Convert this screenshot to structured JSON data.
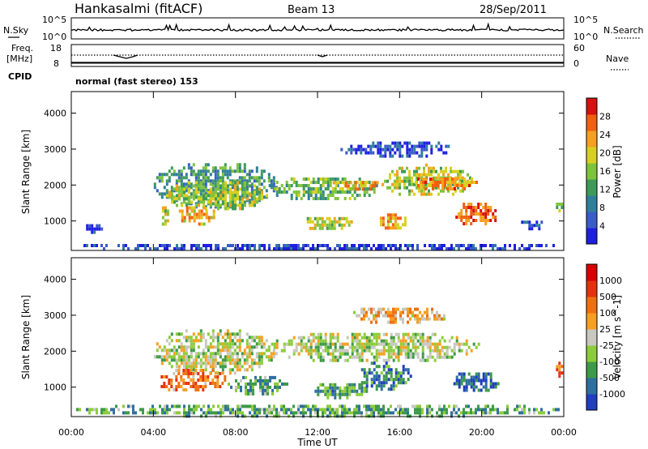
{
  "header": {
    "site_title": "Hankasalmi (fitACF)",
    "beam": "Beam 13",
    "date": "28/Sep/2011"
  },
  "status_panels": {
    "nsky_label": "N.Sky",
    "nsearch_label": "N.Search",
    "noise_ticks": [
      "10^5",
      "10^0"
    ],
    "freq_label_line1": "Freq.",
    "freq_label_line2": "[MHz]",
    "freq_ticks": [
      "18",
      "8"
    ],
    "nave_label": "Nave",
    "nave_ticks": [
      "60",
      "0"
    ],
    "cpid_label": "CPID",
    "cpid_text": "normal (fast stereo) 153"
  },
  "chart_data": [
    {
      "type": "heatmap",
      "parameter": "Power",
      "x_ticks": [
        "00:00",
        "04:00",
        "08:00",
        "12:00",
        "16:00",
        "20:00",
        "00:00"
      ],
      "xlim_hours": [
        0,
        24
      ],
      "ylabel": "Slant Range [km]",
      "y_ticks": [
        1000,
        2000,
        3000,
        4000
      ],
      "ylim": [
        180,
        4600
      ],
      "colorbar": {
        "label": "Power [dB]",
        "ticks": [
          "4",
          "8",
          "12",
          "16",
          "20",
          "24",
          "28"
        ],
        "range": [
          0,
          30
        ],
        "colors": [
          "#1f1fe0",
          "#3a5cc8",
          "#2f7f9a",
          "#3f9a5a",
          "#7ec43a",
          "#d8d020",
          "#f5a020",
          "#f06010",
          "#d81010"
        ]
      },
      "regions": [
        {
          "t": [
            3.9,
            10.0
          ],
          "r": [
            1400,
            2700
          ],
          "level": 0.35
        },
        {
          "t": [
            4.5,
            9.5
          ],
          "r": [
            1300,
            2200
          ],
          "level": 0.55
        },
        {
          "t": [
            9.5,
            15.0
          ],
          "r": [
            1600,
            2300
          ],
          "level": 0.45
        },
        {
          "t": [
            12.5,
            15.2
          ],
          "r": [
            1900,
            2200
          ],
          "level": 0.7
        },
        {
          "t": [
            15.0,
            19.5
          ],
          "r": [
            1700,
            2600
          ],
          "level": 0.55
        },
        {
          "t": [
            16.5,
            19.8
          ],
          "r": [
            1900,
            2300
          ],
          "level": 0.75
        },
        {
          "t": [
            5.0,
            7.0
          ],
          "r": [
            900,
            1500
          ],
          "level": 0.7
        },
        {
          "t": [
            4.3,
            4.7
          ],
          "r": [
            900,
            1500
          ],
          "level": 0.6
        },
        {
          "t": [
            11.0,
            13.8
          ],
          "r": [
            800,
            1200
          ],
          "level": 0.55
        },
        {
          "t": [
            14.8,
            16.3
          ],
          "r": [
            800,
            1300
          ],
          "level": 0.7
        },
        {
          "t": [
            18.6,
            20.8
          ],
          "r": [
            900,
            1600
          ],
          "level": 0.85
        },
        {
          "t": [
            23.5,
            23.9
          ],
          "r": [
            1300,
            1600
          ],
          "level": 0.5
        },
        {
          "t": [
            21.8,
            23.0
          ],
          "r": [
            800,
            1100
          ],
          "level": 0.15
        },
        {
          "t": [
            13.0,
            18.5
          ],
          "r": [
            2800,
            3300
          ],
          "level": 0.12
        },
        {
          "t": [
            0.6,
            1.6
          ],
          "r": [
            700,
            1000
          ],
          "level": 0.1
        },
        {
          "t": [
            0.0,
            24.0
          ],
          "r": [
            200,
            450
          ],
          "level": 0.12
        }
      ]
    },
    {
      "type": "heatmap",
      "parameter": "Velocity",
      "x_ticks": [
        "00:00",
        "04:00",
        "08:00",
        "12:00",
        "16:00",
        "20:00",
        "00:00"
      ],
      "xlim_hours": [
        0,
        24
      ],
      "xlabel": "Time UT",
      "ylabel": "Slant Range [km]",
      "y_ticks": [
        1000,
        2000,
        3000,
        4000
      ],
      "ylim": [
        180,
        4600
      ],
      "colorbar": {
        "label": "Velocity [m s^-1]",
        "ticks": [
          "1000",
          "500",
          "100",
          "25",
          "-25",
          "-100",
          "-500",
          "-1000"
        ],
        "colors": [
          "#1f3ec0",
          "#2f6fa0",
          "#3d9a48",
          "#8ccc3a",
          "#c8c8c0",
          "#f5a020",
          "#f07010",
          "#e83010",
          "#d80000"
        ]
      },
      "regions": [
        {
          "t": [
            3.9,
            10.0
          ],
          "r": [
            1400,
            2700
          ],
          "level": 0.45
        },
        {
          "t": [
            9.5,
            20.0
          ],
          "r": [
            1700,
            2600
          ],
          "level": 0.45
        },
        {
          "t": [
            4.0,
            7.5
          ],
          "r": [
            900,
            1600
          ],
          "level": 0.7
        },
        {
          "t": [
            7.5,
            10.5
          ],
          "r": [
            800,
            1400
          ],
          "level": 0.3
        },
        {
          "t": [
            11.5,
            14.5
          ],
          "r": [
            700,
            1200
          ],
          "level": 0.25
        },
        {
          "t": [
            14.0,
            16.5
          ],
          "r": [
            900,
            1800
          ],
          "level": 0.2
        },
        {
          "t": [
            18.5,
            20.8
          ],
          "r": [
            900,
            1500
          ],
          "level": 0.15
        },
        {
          "t": [
            23.5,
            23.9
          ],
          "r": [
            1300,
            1800
          ],
          "level": 0.7
        },
        {
          "t": [
            0.0,
            24.0
          ],
          "r": [
            200,
            600
          ],
          "level": 0.3
        },
        {
          "t": [
            13.5,
            18.5
          ],
          "r": [
            2800,
            3300
          ],
          "level": 0.6
        }
      ]
    }
  ]
}
